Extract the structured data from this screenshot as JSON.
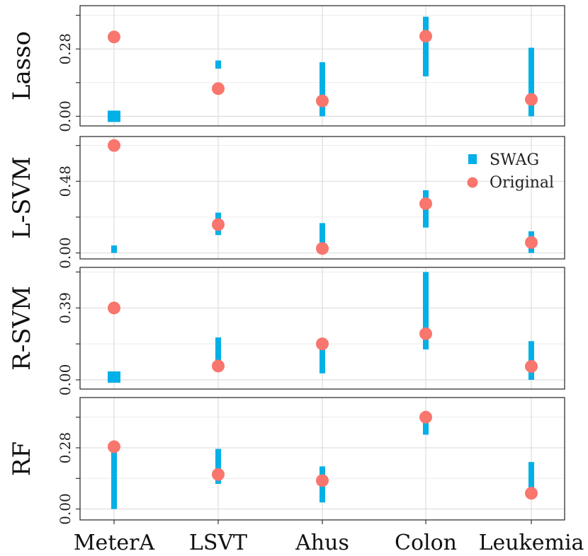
{
  "chart_data": {
    "type": "scatter",
    "categories": [
      "MeterA",
      "LSVT",
      "Ahus",
      "Colon",
      "Leukemia"
    ],
    "legend": {
      "position": "top-right",
      "entries": [
        {
          "label": "SWAG",
          "marker": "square",
          "color": "#00B0E6"
        },
        {
          "label": "Original",
          "marker": "circle",
          "color": "#F8766D"
        }
      ]
    },
    "grid": true,
    "colors": {
      "swag": "#00B0E6",
      "original": "#F8766D",
      "grid": "#dddddd",
      "frame": "#333333"
    },
    "panels": [
      {
        "label": "Lasso",
        "ylim": [
          -0.04,
          0.46
        ],
        "ticks": [
          {
            "value": 0.0,
            "label": "0.00"
          },
          {
            "value": 0.28,
            "label": "0.28"
          }
        ],
        "minor_ticks": [
          0.14,
          0.42
        ],
        "original": [
          0.33,
          0.115,
          0.064,
          0.333,
          0.07
        ],
        "swag_ranges": [
          [
            0.0,
            0.0
          ],
          [
            0.198,
            0.232
          ],
          [
            0.0,
            0.225
          ],
          [
            0.166,
            0.414
          ],
          [
            0.0,
            0.285
          ]
        ]
      },
      {
        "label": "L-SVM",
        "ylim": [
          -0.04,
          0.78
        ],
        "ticks": [
          {
            "value": 0.0,
            "label": "0.00"
          },
          {
            "value": 0.48,
            "label": "0.48"
          }
        ],
        "minor_ticks": [
          0.24,
          0.72
        ],
        "original": [
          0.72,
          0.19,
          0.03,
          0.33,
          0.07
        ],
        "swag_ranges": [
          [
            0.0,
            0.05
          ],
          [
            0.12,
            0.27
          ],
          [
            0.0,
            0.2
          ],
          [
            0.17,
            0.42
          ],
          [
            0.0,
            0.145
          ]
        ]
      },
      {
        "label": "R-SVM",
        "ylim": [
          -0.05,
          0.61
        ],
        "ticks": [
          {
            "value": 0.0,
            "label": "0.00"
          },
          {
            "value": 0.39,
            "label": "0.39"
          }
        ],
        "minor_ticks": [
          0.195,
          0.585
        ],
        "original": [
          0.39,
          0.075,
          0.195,
          0.25,
          0.073
        ],
        "swag_ranges": [
          [
            0.015,
            0.015
          ],
          [
            0.075,
            0.23
          ],
          [
            0.035,
            0.195
          ],
          [
            0.165,
            0.585
          ],
          [
            0.0,
            0.21
          ]
        ]
      },
      {
        "label": "RF",
        "ylim": [
          -0.05,
          0.51
        ],
        "ticks": [
          {
            "value": 0.0,
            "label": "0.00"
          },
          {
            "value": 0.28,
            "label": "0.28"
          }
        ],
        "minor_ticks": [
          0.14,
          0.42
        ],
        "original": [
          0.285,
          0.158,
          0.13,
          0.42,
          0.072
        ],
        "swag_ranges": [
          [
            0.0,
            0.285
          ],
          [
            0.115,
            0.275
          ],
          [
            0.03,
            0.195
          ],
          [
            0.34,
            0.42
          ],
          [
            0.085,
            0.215
          ]
        ]
      }
    ]
  }
}
